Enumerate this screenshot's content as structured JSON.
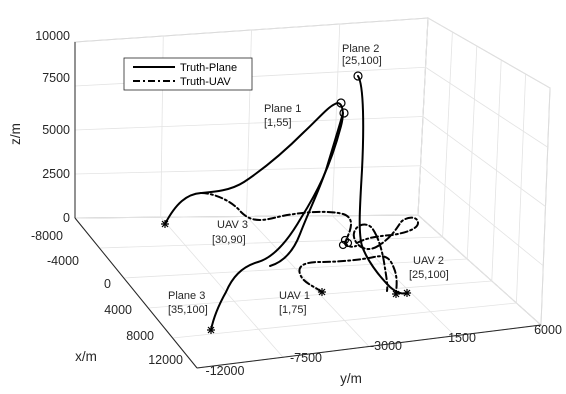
{
  "chart_data": {
    "type": "line3d",
    "title": "",
    "xlabel": "x/m",
    "ylabel": "y/m",
    "zlabel": "z/m",
    "xlim": [
      -8000,
      12000
    ],
    "ylim": [
      -12000,
      6000
    ],
    "zlim": [
      0,
      10000
    ],
    "x_ticks": [
      "-8000",
      "-4000",
      "0",
      "4000",
      "8000",
      "12000"
    ],
    "y_ticks": [
      "-12000",
      "-7500",
      "-3000",
      "1500",
      "6000"
    ],
    "z_ticks": [
      "0",
      "2500",
      "5000",
      "7500",
      "10000"
    ],
    "grid": true,
    "box": true,
    "legend": {
      "placement": "top-left",
      "entries": [
        {
          "label": "Truth-Plane",
          "style": "solid"
        },
        {
          "label": "Truth-UAV",
          "style": "dash-dot"
        }
      ]
    },
    "series": [
      {
        "name": "Truth-Plane",
        "track": "Plane 1",
        "style": "solid"
      },
      {
        "name": "Truth-Plane",
        "track": "Plane 2",
        "style": "solid"
      },
      {
        "name": "Truth-Plane",
        "track": "Plane 3",
        "style": "solid"
      },
      {
        "name": "Truth-UAV",
        "track": "UAV 1",
        "style": "dash-dot"
      },
      {
        "name": "Truth-UAV",
        "track": "UAV 2",
        "style": "dash-dot"
      },
      {
        "name": "Truth-UAV",
        "track": "UAV 3",
        "style": "dash-dot"
      }
    ],
    "annotations": [
      {
        "name": "Plane 1",
        "value": "[1,55]"
      },
      {
        "name": "Plane 2",
        "value": "[25,100]"
      },
      {
        "name": "Plane 3",
        "value": "[35,100]"
      },
      {
        "name": "UAV 1",
        "value": "[1,75]"
      },
      {
        "name": "UAV 2",
        "value": "[25,100]"
      },
      {
        "name": "UAV 3",
        "value": "[30,90]"
      }
    ]
  }
}
